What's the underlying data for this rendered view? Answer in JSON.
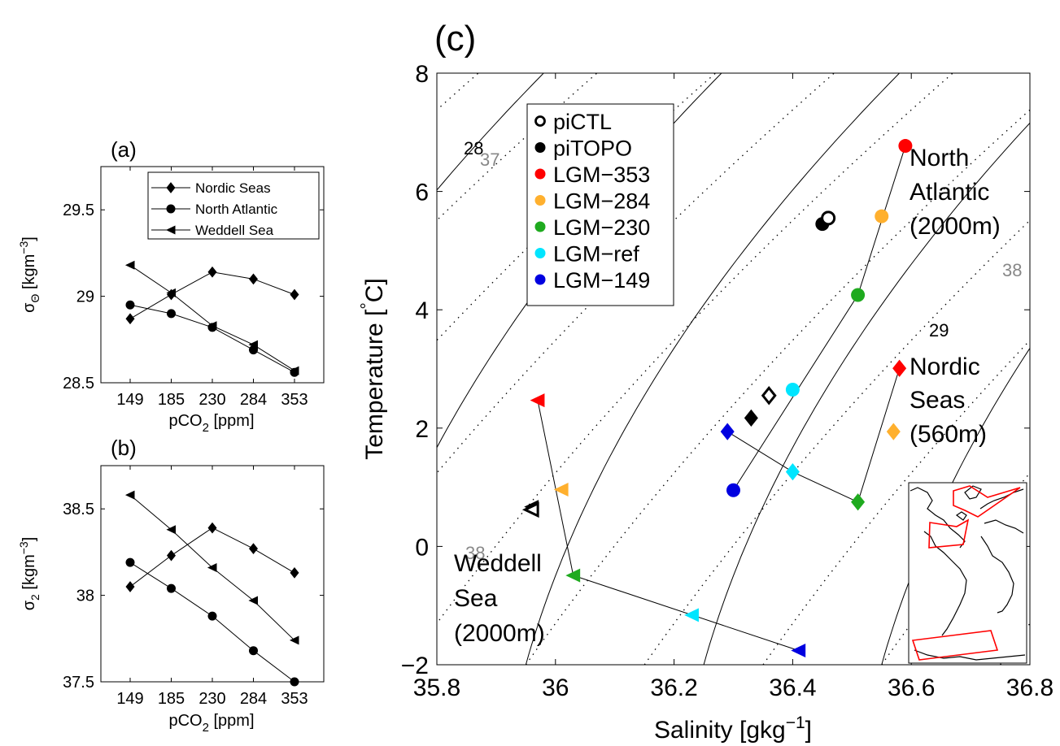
{
  "panels": {
    "a": {
      "label": "(a)",
      "xlabel_main": "pCO",
      "xlabel_sub": "2",
      "xlabel_unit": " [ppm]",
      "ylabel_main": "σ",
      "ylabel_sub": "Θ",
      "ylabel_unit": " [kgm",
      "ylabel_exp": "−3",
      "ylabel_close": "]"
    },
    "b": {
      "label": "(b)",
      "xlabel_main": "pCO",
      "xlabel_sub": "2",
      "xlabel_unit": " [ppm]",
      "ylabel_main": "σ",
      "ylabel_sub": "2",
      "ylabel_unit": " [kgm",
      "ylabel_exp": "−3",
      "ylabel_close": "]"
    },
    "c": {
      "label": "(c)",
      "xlabel": "Salinity [gkg",
      "xlabel_exp": "−1",
      "xlabel_close": "]",
      "ylabel": "Temperature [",
      "ylabel_deg": "°",
      "ylabel_close": "C]"
    }
  },
  "region_labels": {
    "north_atlantic": [
      "North",
      "Atlantic",
      "(2000m)"
    ],
    "nordic_seas": [
      "Nordic",
      "Seas",
      "(560m)"
    ],
    "weddell_sea": [
      "Weddell",
      "Sea",
      "(2000m)"
    ]
  },
  "contour_labels": {
    "sigma0_28": "28",
    "sigma0_29": "29",
    "sigma2_37": "37",
    "sigma2_38_right": "38",
    "sigma2_38_left": "38"
  },
  "colors": {
    "piCTL": "#000000",
    "piTOPO": "#000000",
    "LGM-353": "#ff0000",
    "LGM-284": "#ffb02e",
    "LGM-230": "#1faa1f",
    "LGM-ref": "#00e5ff",
    "LGM-149": "#0000e0",
    "sigma0_contour": "#000000",
    "sigma2_contour": "#000000",
    "sigma2_label": "#888888",
    "map_boxes": "#ff0000"
  },
  "chart_data": [
    {
      "id": "a",
      "type": "line",
      "categories": [
        "149",
        "185",
        "230",
        "284",
        "353"
      ],
      "xlabel": "pCO2 [ppm]",
      "ylabel": "σΘ [kgm−3]",
      "ylim": [
        28.5,
        29.75
      ],
      "yticks": [
        "28.5",
        "29",
        "29.5"
      ],
      "yticks_values": [
        28.5,
        29,
        29.5
      ],
      "legend": "top-right",
      "series": [
        {
          "name": "Nordic Seas",
          "marker": "diamond",
          "values": [
            28.87,
            29.01,
            29.14,
            29.1,
            29.01
          ]
        },
        {
          "name": "North Atlantic",
          "marker": "circle",
          "values": [
            28.95,
            28.9,
            28.82,
            28.69,
            28.56
          ]
        },
        {
          "name": "Weddell Sea",
          "marker": "triangle-left",
          "values": [
            29.18,
            29.02,
            28.83,
            28.72,
            28.57
          ]
        }
      ]
    },
    {
      "id": "b",
      "type": "line",
      "categories": [
        "149",
        "185",
        "230",
        "284",
        "353"
      ],
      "xlabel": "pCO2 [ppm]",
      "ylabel": "σ2 [kgm−3]",
      "ylim": [
        37.5,
        38.75
      ],
      "yticks": [
        "37.5",
        "38",
        "38.5"
      ],
      "yticks_values": [
        37.5,
        38,
        38.5
      ],
      "series": [
        {
          "name": "Nordic Seas",
          "marker": "diamond",
          "values": [
            38.05,
            38.23,
            38.39,
            38.27,
            38.13
          ]
        },
        {
          "name": "North Atlantic",
          "marker": "circle",
          "values": [
            38.19,
            38.04,
            37.88,
            37.68,
            37.5
          ]
        },
        {
          "name": "Weddell Sea",
          "marker": "triangle-left",
          "values": [
            38.58,
            38.38,
            38.16,
            37.97,
            37.74
          ]
        }
      ]
    },
    {
      "id": "c",
      "type": "scatter",
      "xlabel": "Salinity [gkg−1]",
      "ylabel": "Temperature [°C]",
      "xlim": [
        35.8,
        36.8
      ],
      "ylim": [
        -2,
        8
      ],
      "xticks": [
        "35.8",
        "36",
        "36.2",
        "36.4",
        "36.6",
        "36.8"
      ],
      "xticks_values": [
        35.8,
        36.0,
        36.2,
        36.4,
        36.6,
        36.8
      ],
      "yticks": [
        "−2",
        "0",
        "2",
        "4",
        "6",
        "8"
      ],
      "yticks_values": [
        -2,
        0,
        2,
        4,
        6,
        8
      ],
      "legend": "top-left",
      "legend_entries": [
        "piCTL",
        "piTOPO",
        "LGM−353",
        "LGM−284",
        "LGM−230",
        "LGM−ref",
        "LGM−149"
      ],
      "regions": [
        {
          "region": "North Atlantic (2000m)",
          "marker": "circle",
          "points": {
            "piCTL": [
              36.46,
              5.55
            ],
            "piTOPO": [
              36.45,
              5.45
            ],
            "LGM-353": [
              36.59,
              6.77
            ],
            "LGM-284": [
              36.55,
              5.58
            ],
            "LGM-230": [
              36.51,
              4.25
            ],
            "LGM-ref": [
              36.4,
              2.65
            ],
            "LGM-149": [
              36.3,
              0.95
            ]
          },
          "path": [
            "LGM-353",
            "LGM-230",
            "LGM-149"
          ]
        },
        {
          "region": "Nordic Seas (560m)",
          "marker": "diamond",
          "points": {
            "piCTL": [
              36.36,
              2.55
            ],
            "piTOPO": [
              36.33,
              2.17
            ],
            "LGM-353": [
              36.58,
              3.01
            ],
            "LGM-284": [
              36.57,
              1.94
            ],
            "LGM-230": [
              36.51,
              0.75
            ],
            "LGM-ref": [
              36.4,
              1.26
            ],
            "LGM-149": [
              36.29,
              1.94
            ]
          },
          "path": [
            "LGM-353",
            "LGM-230",
            "LGM-ref",
            "LGM-149"
          ]
        },
        {
          "region": "Weddell Sea (2000m)",
          "marker": "triangle-left",
          "points": {
            "piCTL": [
              35.96,
              0.62
            ],
            "piTOPO": [
              35.96,
              0.67
            ],
            "LGM-353": [
              35.97,
              2.47
            ],
            "LGM-284": [
              36.01,
              0.96
            ],
            "LGM-230": [
              36.03,
              -0.49
            ],
            "LGM-ref": [
              36.23,
              -1.16
            ],
            "LGM-149": [
              36.41,
              -1.76
            ]
          },
          "path": [
            "LGM-353",
            "LGM-230",
            "LGM-149"
          ]
        }
      ],
      "inset": "map of Atlantic with red region boxes"
    }
  ]
}
